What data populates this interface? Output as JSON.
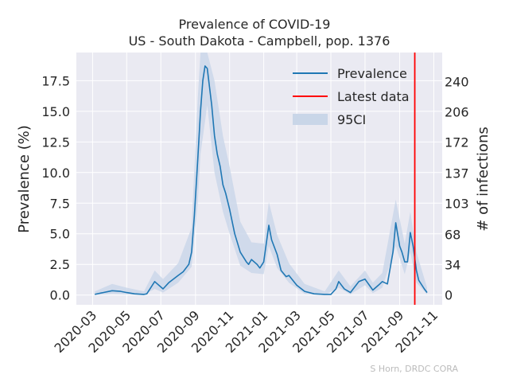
{
  "chart_data": {
    "type": "line",
    "title_line1": "Prevalence of COVID-19",
    "title_line2": "US - South Dakota - Campbell, pop. 1376",
    "ylabel_left": "Prevalence (%)",
    "ylabel_right": "# of infections",
    "credit": "S Horn, DRDC CORA",
    "x_tick_labels": [
      "2020-03",
      "2020-05",
      "2020-07",
      "2020-09",
      "2020-11",
      "2021-01",
      "2021-03",
      "2021-05",
      "2021-07",
      "2021-09",
      "2021-11"
    ],
    "x_tick_dates": [
      "2020-03-01",
      "2020-05-01",
      "2020-07-01",
      "2020-09-01",
      "2020-11-01",
      "2021-01-01",
      "2021-03-01",
      "2021-05-01",
      "2021-07-01",
      "2021-09-01",
      "2021-11-01"
    ],
    "x_range": [
      "2020-02-01",
      "2021-11-16"
    ],
    "y_left_ticks": [
      0.0,
      2.5,
      5.0,
      7.5,
      10.0,
      12.5,
      15.0,
      17.5
    ],
    "y_left_tick_labels": [
      "0.0",
      "2.5",
      "5.0",
      "7.5",
      "10.0",
      "12.5",
      "15.0",
      "17.5"
    ],
    "y_left_range": [
      -0.8,
      19.8
    ],
    "y_right_tick_labels": [
      "0",
      "34",
      "68",
      "103",
      "137",
      "172",
      "206",
      "240"
    ],
    "y_right_tick_values": [
      0,
      34,
      68,
      103,
      137,
      172,
      206,
      240
    ],
    "population": 1376,
    "legend": {
      "placement": "top-right",
      "entries": [
        {
          "label": "Prevalence",
          "kind": "line",
          "color": "#1f77b4"
        },
        {
          "label": "Latest data",
          "kind": "line",
          "color": "#ff0000"
        },
        {
          "label": "95CI",
          "kind": "patch",
          "color": "#c9d6e8"
        }
      ]
    },
    "grid": true,
    "latest_data_date": "2021-09-28",
    "series": [
      {
        "name": "Prevalence",
        "color": "#1f77b4",
        "points": [
          [
            "2020-03-05",
            0.05
          ],
          [
            "2020-03-20",
            0.2
          ],
          [
            "2020-04-05",
            0.35
          ],
          [
            "2020-04-20",
            0.3
          ],
          [
            "2020-05-01",
            0.2
          ],
          [
            "2020-05-15",
            0.1
          ],
          [
            "2020-06-01",
            0.05
          ],
          [
            "2020-06-06",
            0.1
          ],
          [
            "2020-06-20",
            1.1
          ],
          [
            "2020-07-05",
            0.5
          ],
          [
            "2020-07-15",
            1.0
          ],
          [
            "2020-08-01",
            1.6
          ],
          [
            "2020-08-10",
            1.9
          ],
          [
            "2020-08-20",
            2.5
          ],
          [
            "2020-08-25",
            3.5
          ],
          [
            "2020-08-30",
            6.5
          ],
          [
            "2020-09-05",
            11.0
          ],
          [
            "2020-09-10",
            15.0
          ],
          [
            "2020-09-14",
            17.5
          ],
          [
            "2020-09-18",
            18.7
          ],
          [
            "2020-09-22",
            18.5
          ],
          [
            "2020-09-26",
            17.0
          ],
          [
            "2020-09-30",
            15.5
          ],
          [
            "2020-10-05",
            13.0
          ],
          [
            "2020-10-10",
            11.5
          ],
          [
            "2020-10-15",
            10.5
          ],
          [
            "2020-10-20",
            9.0
          ],
          [
            "2020-10-25",
            8.3
          ],
          [
            "2020-11-01",
            7.0
          ],
          [
            "2020-11-10",
            5.0
          ],
          [
            "2020-11-20",
            3.5
          ],
          [
            "2020-12-01",
            2.7
          ],
          [
            "2020-12-05",
            2.5
          ],
          [
            "2020-12-10",
            2.9
          ],
          [
            "2020-12-20",
            2.5
          ],
          [
            "2020-12-25",
            2.2
          ],
          [
            "2021-01-01",
            2.7
          ],
          [
            "2021-01-10",
            5.7
          ],
          [
            "2021-01-15",
            4.5
          ],
          [
            "2021-01-25",
            3.3
          ],
          [
            "2021-02-01",
            2.0
          ],
          [
            "2021-02-10",
            1.5
          ],
          [
            "2021-02-15",
            1.6
          ],
          [
            "2021-03-01",
            0.8
          ],
          [
            "2021-03-15",
            0.3
          ],
          [
            "2021-04-01",
            0.1
          ],
          [
            "2021-04-20",
            0.05
          ],
          [
            "2021-05-01",
            0.05
          ],
          [
            "2021-05-10",
            0.5
          ],
          [
            "2021-05-15",
            1.1
          ],
          [
            "2021-05-25",
            0.5
          ],
          [
            "2021-06-05",
            0.2
          ],
          [
            "2021-06-20",
            1.1
          ],
          [
            "2021-07-01",
            1.3
          ],
          [
            "2021-07-15",
            0.4
          ],
          [
            "2021-07-25",
            0.8
          ],
          [
            "2021-08-01",
            1.1
          ],
          [
            "2021-08-10",
            0.9
          ],
          [
            "2021-08-20",
            3.5
          ],
          [
            "2021-08-25",
            5.9
          ],
          [
            "2021-09-01",
            4.0
          ],
          [
            "2021-09-05",
            3.5
          ],
          [
            "2021-09-10",
            2.7
          ],
          [
            "2021-09-15",
            2.7
          ],
          [
            "2021-09-20",
            5.1
          ],
          [
            "2021-09-25",
            4.0
          ],
          [
            "2021-10-01",
            2.0
          ],
          [
            "2021-10-05",
            1.2
          ],
          [
            "2021-10-15",
            0.5
          ],
          [
            "2021-10-20",
            0.2
          ]
        ]
      }
    ],
    "ci95": {
      "upper": [
        [
          "2020-03-05",
          0.3
        ],
        [
          "2020-04-05",
          0.9
        ],
        [
          "2020-05-01",
          0.6
        ],
        [
          "2020-06-01",
          0.3
        ],
        [
          "2020-06-20",
          2.0
        ],
        [
          "2020-07-05",
          1.3
        ],
        [
          "2020-08-01",
          2.6
        ],
        [
          "2020-08-25",
          5.5
        ],
        [
          "2020-09-05",
          16.0
        ],
        [
          "2020-09-10",
          19.8
        ],
        [
          "2020-09-22",
          19.8
        ],
        [
          "2020-10-05",
          17.5
        ],
        [
          "2020-10-20",
          13.0
        ],
        [
          "2020-11-01",
          10.5
        ],
        [
          "2020-11-20",
          6.0
        ],
        [
          "2020-12-10",
          4.3
        ],
        [
          "2021-01-01",
          4.2
        ],
        [
          "2021-01-10",
          7.6
        ],
        [
          "2021-01-25",
          4.9
        ],
        [
          "2021-02-15",
          2.6
        ],
        [
          "2021-03-15",
          0.9
        ],
        [
          "2021-04-20",
          0.3
        ],
        [
          "2021-05-15",
          2.0
        ],
        [
          "2021-06-05",
          0.7
        ],
        [
          "2021-07-01",
          2.0
        ],
        [
          "2021-07-15",
          1.0
        ],
        [
          "2021-08-01",
          1.8
        ],
        [
          "2021-08-25",
          7.8
        ],
        [
          "2021-09-10",
          4.2
        ],
        [
          "2021-09-20",
          6.8
        ],
        [
          "2021-10-01",
          3.5
        ],
        [
          "2021-10-20",
          0.6
        ]
      ],
      "lower": [
        [
          "2020-03-05",
          0.0
        ],
        [
          "2020-04-05",
          0.1
        ],
        [
          "2020-05-01",
          0.05
        ],
        [
          "2020-06-01",
          0.0
        ],
        [
          "2020-06-20",
          0.5
        ],
        [
          "2020-07-05",
          0.2
        ],
        [
          "2020-08-01",
          1.0
        ],
        [
          "2020-08-25",
          2.3
        ],
        [
          "2020-09-05",
          7.5
        ],
        [
          "2020-09-10",
          11.5
        ],
        [
          "2020-09-22",
          15.5
        ],
        [
          "2020-10-05",
          10.0
        ],
        [
          "2020-10-20",
          6.8
        ],
        [
          "2020-11-01",
          5.0
        ],
        [
          "2020-11-20",
          2.4
        ],
        [
          "2020-12-10",
          1.8
        ],
        [
          "2021-01-01",
          1.7
        ],
        [
          "2021-01-10",
          4.0
        ],
        [
          "2021-01-25",
          2.2
        ],
        [
          "2021-02-15",
          1.0
        ],
        [
          "2021-03-15",
          0.1
        ],
        [
          "2021-04-20",
          0.0
        ],
        [
          "2021-05-15",
          0.6
        ],
        [
          "2021-06-05",
          0.05
        ],
        [
          "2021-07-01",
          0.8
        ],
        [
          "2021-07-15",
          0.15
        ],
        [
          "2021-08-01",
          0.6
        ],
        [
          "2021-08-25",
          4.0
        ],
        [
          "2021-09-10",
          1.7
        ],
        [
          "2021-09-20",
          3.5
        ],
        [
          "2021-10-01",
          1.0
        ],
        [
          "2021-10-20",
          0.05
        ]
      ]
    }
  }
}
